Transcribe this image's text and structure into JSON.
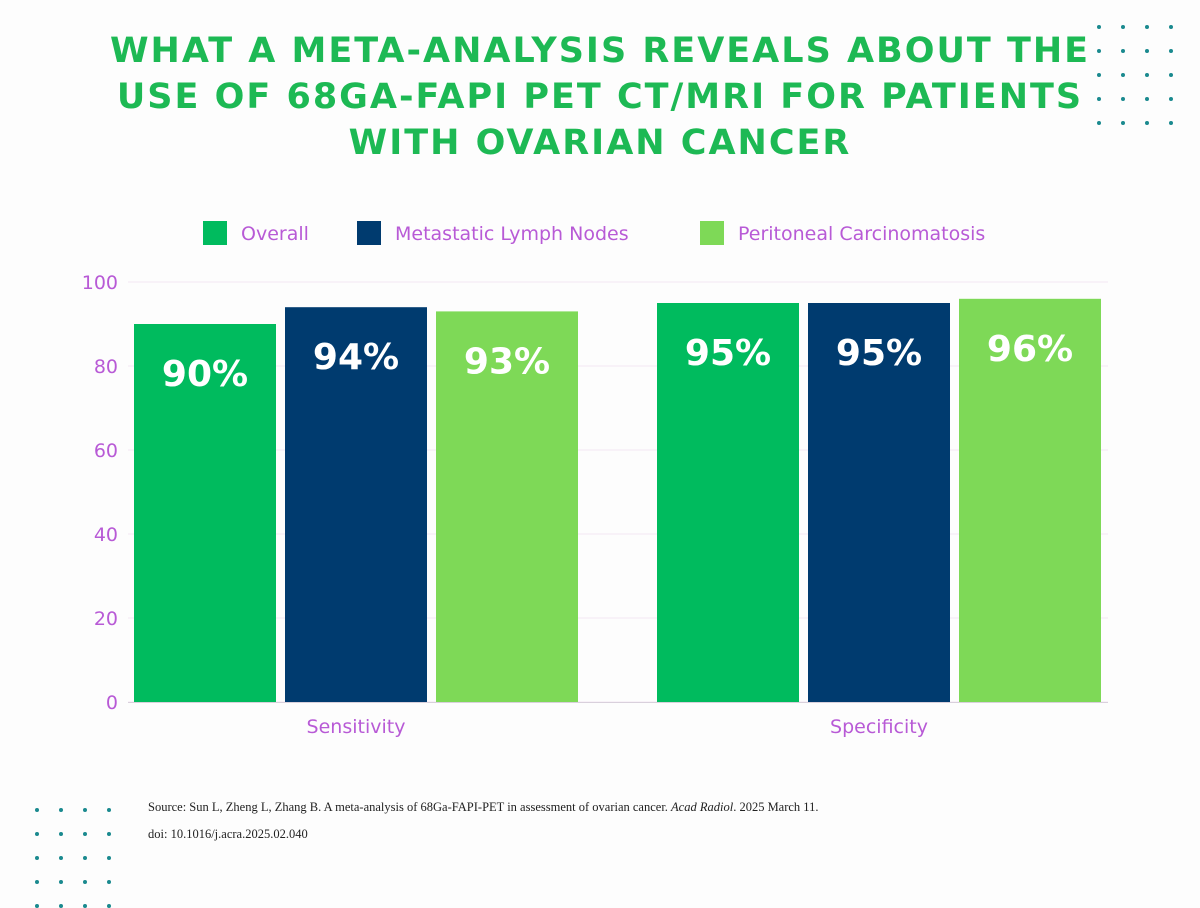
{
  "title_lines": [
    "WHAT A META-ANALYSIS REVEALS ABOUT THE",
    "USE OF 68GA-FAPI PET CT/MRI FOR PATIENTS",
    "WITH OVARIAN CANCER"
  ],
  "colors": {
    "title": "#1db954",
    "axis_text": "#b85ad6",
    "dots": "#1a8a8f"
  },
  "chart_data": {
    "type": "bar",
    "title": "WHAT A META-ANALYSIS REVEALS ABOUT THE USE OF 68GA-FAPI PET CT/MRI FOR PATIENTS WITH OVARIAN CANCER",
    "categories": [
      "Sensitivity",
      "Specificity"
    ],
    "series": [
      {
        "name": "Overall",
        "color": "#00bb5e",
        "values": [
          90,
          95
        ],
        "labels": [
          "90%",
          "95%"
        ]
      },
      {
        "name": "Metastatic Lymph Nodes",
        "color": "#003b6f",
        "values": [
          94,
          95
        ],
        "labels": [
          "94%",
          "95%"
        ]
      },
      {
        "name": "Peritoneal Carcinomatosis",
        "color": "#7ed957",
        "values": [
          93,
          96
        ],
        "labels": [
          "93%",
          "96%"
        ]
      }
    ],
    "yticks": [
      0,
      20,
      40,
      60,
      80,
      100
    ],
    "ylim": [
      0,
      100
    ],
    "xlabel": "",
    "ylabel": "",
    "grid": true,
    "legend": "top"
  },
  "source": {
    "line1_pre": "Source: Sun L, Zheng L, Zhang B. A meta-analysis of 68Ga-FAPI-PET in assessment of ovarian cancer.",
    "journal": "Acad Radiol",
    "line1_post": ". 2025 March 11.",
    "line2": "doi: 10.1016/j.acra.2025.02.040"
  }
}
